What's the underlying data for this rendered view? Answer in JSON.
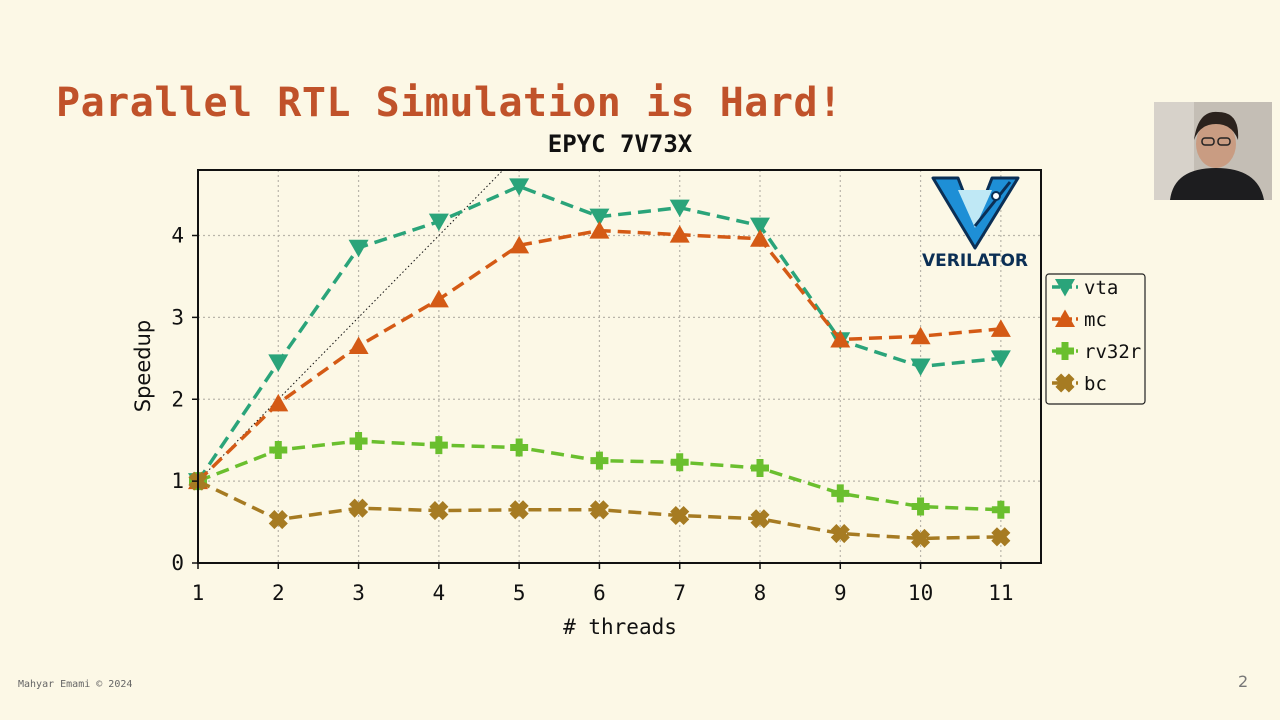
{
  "slide": {
    "title": "Parallel RTL Simulation is Hard!",
    "footer": "Mahyar Emami © 2024",
    "page_number": "2"
  },
  "logo": {
    "text": "VERILATOR",
    "accent": "#1e8fd6"
  },
  "chart_data": {
    "type": "line",
    "title": "EPYC 7V73X",
    "xlabel": "# threads",
    "ylabel": "Speedup",
    "x": [
      1,
      2,
      3,
      4,
      5,
      6,
      7,
      8,
      9,
      10,
      11
    ],
    "xlim": [
      1,
      11.5
    ],
    "ylim": [
      0,
      4.8
    ],
    "yticks": [
      0,
      1,
      2,
      3,
      4
    ],
    "grid": true,
    "legend_position": "right",
    "reference_line": "ideal linear speedup (y = x), dotted",
    "series": [
      {
        "name": "vta",
        "color": "#2aa47a",
        "marker": "triangle-down",
        "values": [
          1.0,
          2.45,
          3.85,
          4.17,
          4.6,
          4.23,
          4.34,
          4.12,
          2.72,
          2.4,
          2.5
        ]
      },
      {
        "name": "mc",
        "color": "#d45a15",
        "marker": "triangle-up",
        "values": [
          1.0,
          1.95,
          2.65,
          3.22,
          3.88,
          4.06,
          4.01,
          3.96,
          2.73,
          2.77,
          2.86
        ]
      },
      {
        "name": "rv32r",
        "color": "#6abf2e",
        "marker": "plus",
        "values": [
          1.0,
          1.38,
          1.49,
          1.44,
          1.41,
          1.25,
          1.23,
          1.16,
          0.85,
          0.69,
          0.65
        ]
      },
      {
        "name": "bc",
        "color": "#a67b22",
        "marker": "x",
        "values": [
          1.0,
          0.53,
          0.67,
          0.64,
          0.65,
          0.65,
          0.58,
          0.54,
          0.36,
          0.3,
          0.32
        ]
      }
    ]
  }
}
